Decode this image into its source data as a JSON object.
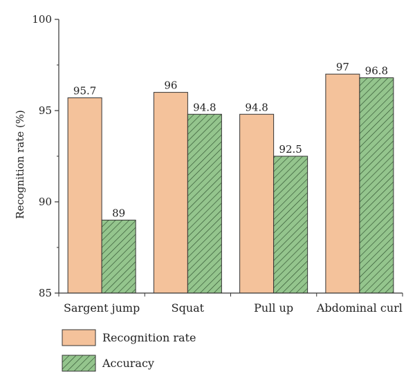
{
  "chart_data": {
    "type": "bar",
    "categories": [
      "Sargent jump",
      "Squat",
      "Pull up",
      "Abdominal curl"
    ],
    "series": [
      {
        "name": "Recognition rate",
        "values": [
          95.7,
          96,
          94.8,
          97
        ],
        "color": "#f4c29b",
        "hatch": false
      },
      {
        "name": "Accuracy",
        "values": [
          89,
          94.8,
          92.5,
          96.8
        ],
        "color": "#94c58d",
        "hatch": true
      }
    ],
    "data_labels": [
      [
        "95.7",
        "96",
        "94.8",
        "97"
      ],
      [
        "89",
        "94.8",
        "92.5",
        "96.8"
      ]
    ],
    "ylabel": "Recognition rate (%)",
    "ylim": [
      85,
      100
    ],
    "yticks": [
      85,
      90,
      95,
      100
    ],
    "grid": false,
    "legend_position": "bottom-left"
  }
}
